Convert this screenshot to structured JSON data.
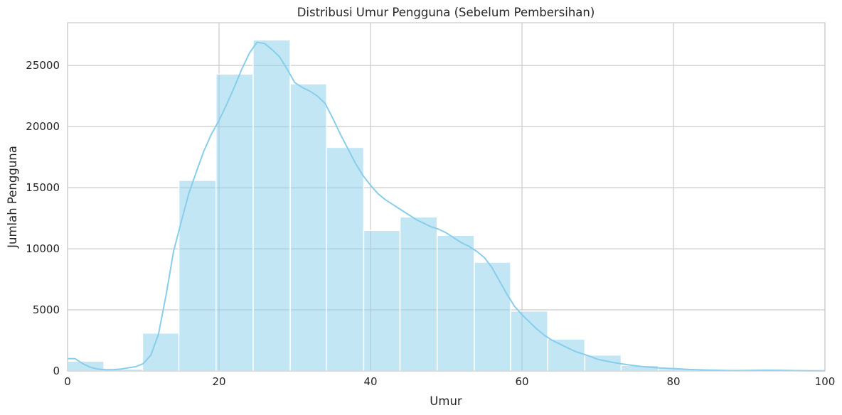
{
  "chart_data": {
    "type": "bar",
    "title": "Distribusi Umur Pengguna (Sebelum Pembersihan)",
    "xlabel": "Umur",
    "ylabel": "Jumlah Pengguna",
    "xlim": [
      0,
      100
    ],
    "ylim": [
      0,
      28500
    ],
    "xticks": [
      0,
      20,
      40,
      60,
      80,
      100
    ],
    "yticks": [
      0,
      5000,
      10000,
      15000,
      20000,
      25000
    ],
    "grid": true,
    "legend": "none",
    "bar_color": "#87ceeb",
    "bins": [
      {
        "x0": 0.0,
        "x1": 4.8,
        "value": 800
      },
      {
        "x0": 4.8,
        "x1": 9.9,
        "value": 150
      },
      {
        "x0": 9.9,
        "x1": 14.7,
        "value": 3100
      },
      {
        "x0": 14.7,
        "x1": 19.6,
        "value": 15600
      },
      {
        "x0": 19.6,
        "x1": 24.5,
        "value": 24300
      },
      {
        "x0": 24.5,
        "x1": 29.4,
        "value": 27100
      },
      {
        "x0": 29.4,
        "x1": 34.2,
        "value": 23500
      },
      {
        "x0": 34.2,
        "x1": 39.1,
        "value": 18300
      },
      {
        "x0": 39.1,
        "x1": 43.9,
        "value": 11500
      },
      {
        "x0": 43.9,
        "x1": 48.8,
        "value": 12600
      },
      {
        "x0": 48.8,
        "x1": 53.7,
        "value": 11100
      },
      {
        "x0": 53.7,
        "x1": 58.5,
        "value": 8900
      },
      {
        "x0": 58.5,
        "x1": 63.4,
        "value": 4900
      },
      {
        "x0": 63.4,
        "x1": 68.3,
        "value": 2600
      },
      {
        "x0": 68.3,
        "x1": 73.1,
        "value": 1300
      },
      {
        "x0": 73.1,
        "x1": 78.0,
        "value": 450
      },
      {
        "x0": 78.0,
        "x1": 82.9,
        "value": 180
      },
      {
        "x0": 82.9,
        "x1": 87.7,
        "value": 60
      },
      {
        "x0": 87.7,
        "x1": 92.6,
        "value": 30
      },
      {
        "x0": 92.6,
        "x1": 97.4,
        "value": 40
      },
      {
        "x0": 97.4,
        "x1": 100.0,
        "value": 15
      }
    ],
    "kde": {
      "x": [
        0,
        1,
        2,
        3,
        4,
        5,
        6,
        7,
        8,
        9,
        10,
        11,
        12,
        13,
        14,
        15,
        16,
        17,
        18,
        19,
        20,
        21,
        22,
        23,
        24,
        25,
        26,
        27,
        28,
        29,
        30,
        31,
        32,
        33,
        34,
        35,
        36,
        37,
        38,
        39,
        40,
        41,
        42,
        43,
        44,
        45,
        46,
        47,
        48,
        49,
        50,
        51,
        52,
        53,
        54,
        55,
        56,
        57,
        58,
        59,
        60,
        61,
        62,
        63,
        64,
        65,
        66,
        67,
        68,
        69,
        70,
        72,
        74,
        76,
        78,
        80,
        82,
        84,
        86,
        88,
        90,
        92,
        94,
        96,
        98,
        100
      ],
      "y": [
        1000,
        1000,
        600,
        300,
        150,
        100,
        100,
        150,
        250,
        350,
        600,
        1300,
        3000,
        6200,
        9800,
        12200,
        14500,
        16300,
        18000,
        19400,
        20500,
        21800,
        23200,
        24700,
        26000,
        26900,
        26800,
        26300,
        25700,
        24700,
        23600,
        23200,
        22900,
        22500,
        21900,
        20700,
        19400,
        18200,
        17000,
        16000,
        15200,
        14500,
        14000,
        13600,
        13200,
        12800,
        12400,
        12100,
        11800,
        11600,
        11300,
        10900,
        10500,
        10200,
        9800,
        9300,
        8500,
        7400,
        6300,
        5300,
        4600,
        4000,
        3400,
        2900,
        2500,
        2200,
        1900,
        1600,
        1400,
        1200,
        950,
        700,
        500,
        350,
        250,
        200,
        120,
        80,
        50,
        30,
        40,
        60,
        50,
        30,
        20,
        10
      ]
    }
  }
}
